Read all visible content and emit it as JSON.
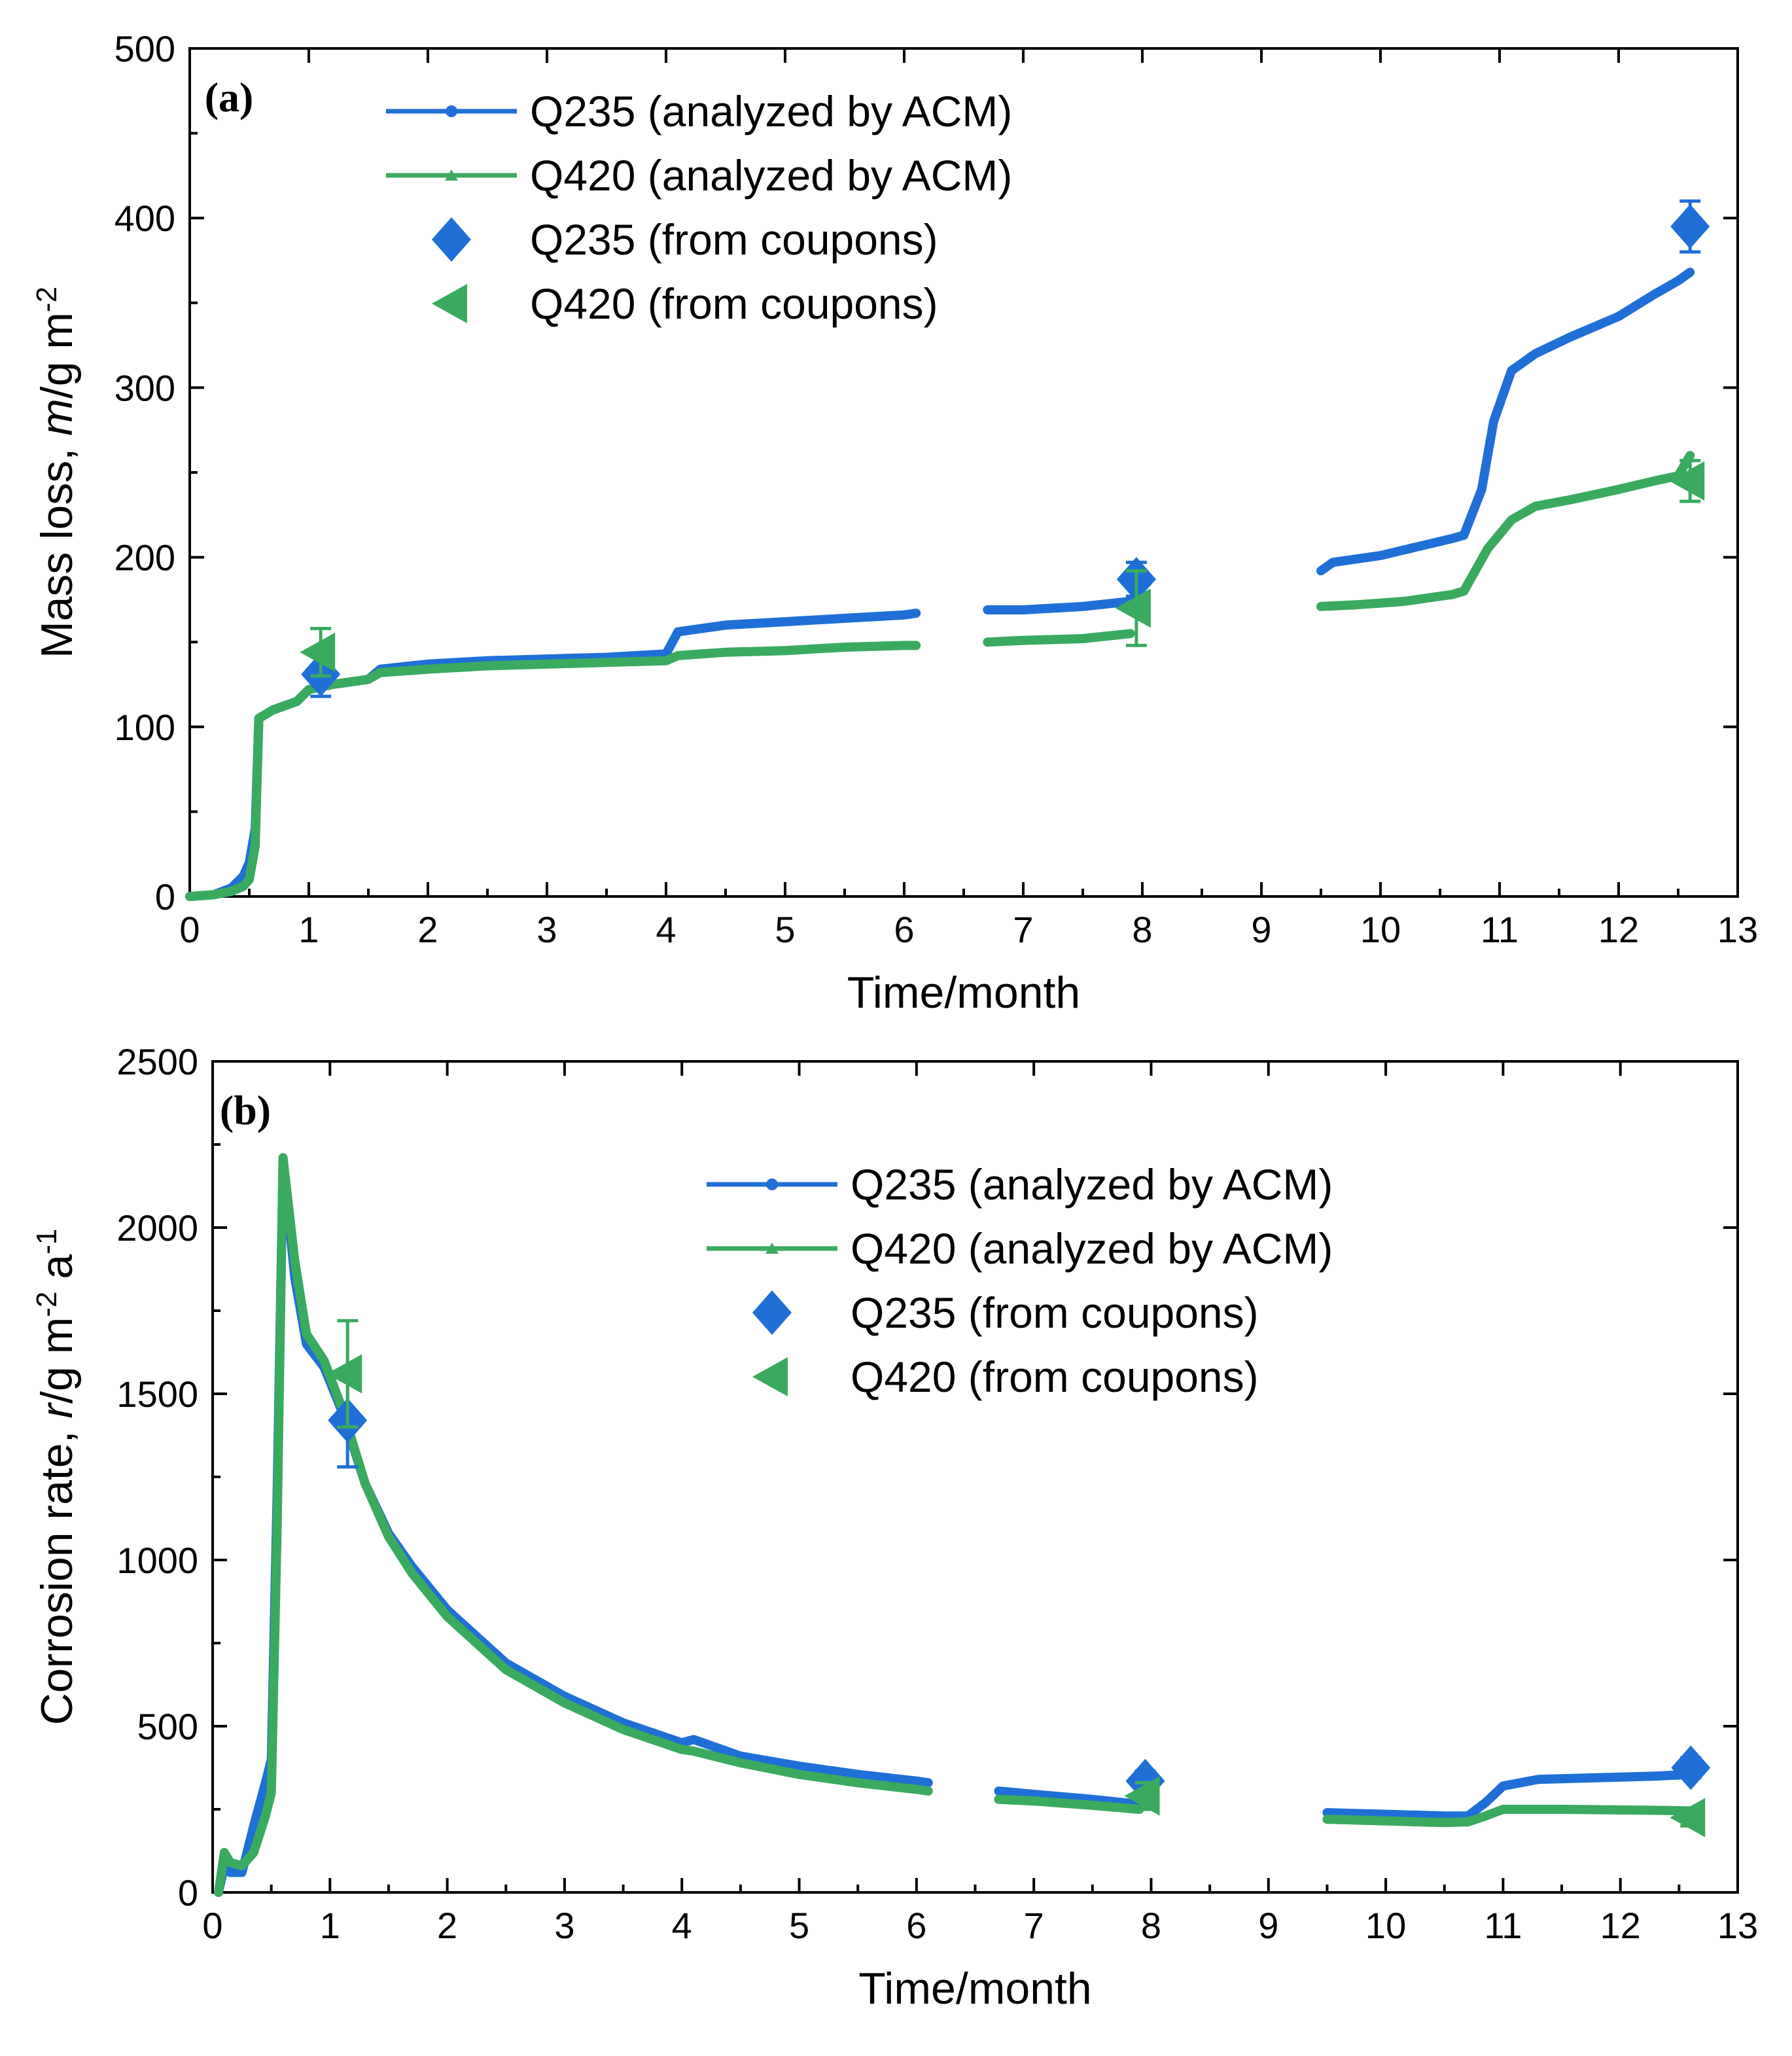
{
  "colors": {
    "q235": "#1f6fd6",
    "q420": "#3aaa5f"
  },
  "legend_labels": [
    "Q235 (analyzed by ACM)",
    "Q420 (analyzed by ACM)",
    "Q235 (from coupons)",
    "Q420 (from coupons)"
  ],
  "chart_data": [
    {
      "type": "line",
      "panel_label": "(a)",
      "xlabel": "Time/month",
      "ylabel": "Mass loss, m/g m-2",
      "ylabel_parts": {
        "prefix": "Mass loss, ",
        "var": "m",
        "unit": "/g m",
        "sup": "-2"
      },
      "xlim": [
        0,
        13
      ],
      "ylim": [
        0,
        500
      ],
      "xticks": [
        "0",
        "1",
        "2",
        "3",
        "4",
        "5",
        "6",
        "7",
        "8",
        "9",
        "10",
        "11",
        "12",
        "13"
      ],
      "yticks": [
        "0",
        "100",
        "200",
        "300",
        "400",
        "500"
      ],
      "legend_position": "top-center",
      "series": [
        {
          "name": "Q235 (analyzed by ACM)",
          "segments": [
            [
              [
                0,
                0
              ],
              [
                0.2,
                1
              ],
              [
                0.35,
                5
              ],
              [
                0.45,
                12
              ],
              [
                0.5,
                20
              ],
              [
                0.55,
                40
              ],
              [
                0.58,
                105
              ],
              [
                0.7,
                110
              ],
              [
                0.9,
                115
              ],
              [
                1.0,
                122
              ],
              [
                1.2,
                125
              ],
              [
                1.5,
                128
              ],
              [
                1.6,
                134
              ],
              [
                2.0,
                137
              ],
              [
                2.5,
                139
              ],
              [
                3.0,
                140
              ],
              [
                3.5,
                141
              ],
              [
                4.0,
                143
              ],
              [
                4.1,
                156
              ],
              [
                4.5,
                160
              ],
              [
                5.0,
                162
              ],
              [
                5.5,
                164
              ],
              [
                6.0,
                166
              ],
              [
                6.1,
                167
              ]
            ],
            [
              [
                6.7,
                169
              ],
              [
                7.0,
                169
              ],
              [
                7.5,
                171
              ],
              [
                7.9,
                174
              ]
            ],
            [
              [
                9.5,
                192
              ],
              [
                9.6,
                197
              ],
              [
                10.0,
                201
              ],
              [
                10.3,
                206
              ],
              [
                10.6,
                211
              ],
              [
                10.7,
                213
              ],
              [
                10.85,
                240
              ],
              [
                10.95,
                280
              ],
              [
                11.1,
                310
              ],
              [
                11.3,
                320
              ],
              [
                11.6,
                330
              ],
              [
                12.0,
                342
              ],
              [
                12.3,
                355
              ],
              [
                12.5,
                363
              ],
              [
                12.6,
                368
              ]
            ]
          ]
        },
        {
          "name": "Q420 (analyzed by ACM)",
          "segments": [
            [
              [
                0,
                0
              ],
              [
                0.2,
                1
              ],
              [
                0.35,
                3
              ],
              [
                0.45,
                6
              ],
              [
                0.5,
                10
              ],
              [
                0.55,
                30
              ],
              [
                0.58,
                105
              ],
              [
                0.7,
                110
              ],
              [
                0.9,
                115
              ],
              [
                1.0,
                122
              ],
              [
                1.2,
                125
              ],
              [
                1.5,
                128
              ],
              [
                1.6,
                132
              ],
              [
                2.0,
                134
              ],
              [
                2.5,
                136
              ],
              [
                3.0,
                137
              ],
              [
                3.5,
                138
              ],
              [
                4.0,
                139
              ],
              [
                4.1,
                142
              ],
              [
                4.5,
                144
              ],
              [
                5.0,
                145
              ],
              [
                5.5,
                147
              ],
              [
                6.0,
                148
              ],
              [
                6.1,
                148
              ]
            ],
            [
              [
                6.7,
                150
              ],
              [
                7.0,
                151
              ],
              [
                7.5,
                152
              ],
              [
                7.9,
                155
              ]
            ],
            [
              [
                9.5,
                171
              ],
              [
                9.8,
                172
              ],
              [
                10.2,
                174
              ],
              [
                10.6,
                178
              ],
              [
                10.7,
                180
              ],
              [
                10.9,
                205
              ],
              [
                11.1,
                222
              ],
              [
                11.3,
                230
              ],
              [
                11.6,
                234
              ],
              [
                12.0,
                240
              ],
              [
                12.3,
                245
              ],
              [
                12.5,
                248
              ],
              [
                12.6,
                260
              ]
            ]
          ]
        }
      ],
      "coupons": [
        {
          "name": "Q235 (from coupons)",
          "marker": "diamond",
          "points": [
            [
              1.1,
              131,
              13
            ],
            [
              7.95,
              187,
              10
            ],
            [
              12.6,
              395,
              15
            ]
          ]
        },
        {
          "name": "Q420 (from coupons)",
          "marker": "triangle-left",
          "points": [
            [
              1.1,
              144,
              14
            ],
            [
              7.95,
              170,
              22
            ],
            [
              12.6,
              245,
              12
            ]
          ]
        }
      ]
    },
    {
      "type": "line",
      "panel_label": "(b)",
      "xlabel": "Time/month",
      "ylabel": "Corrosion rate, r/g m-2 a-1",
      "ylabel_parts": {
        "prefix": "Corrosion rate, ",
        "var": "r",
        "unit": "/g m",
        "sup": "-2",
        "mid": " a",
        "sup2": "-1"
      },
      "xlim": [
        0,
        13
      ],
      "ylim": [
        0,
        2500
      ],
      "xticks": [
        "0",
        "1",
        "2",
        "3",
        "4",
        "5",
        "6",
        "7",
        "8",
        "9",
        "10",
        "11",
        "12",
        "13"
      ],
      "yticks": [
        "0",
        "500",
        "1000",
        "1500",
        "2000",
        "2500"
      ],
      "legend_position": "top-right",
      "series": [
        {
          "name": "Q235 (analyzed by ACM)",
          "segments": [
            [
              [
                0.05,
                0
              ],
              [
                0.1,
                80
              ],
              [
                0.15,
                60
              ],
              [
                0.25,
                60
              ],
              [
                0.35,
                200
              ],
              [
                0.45,
                330
              ],
              [
                0.5,
                400
              ],
              [
                0.55,
                1200
              ],
              [
                0.6,
                2200
              ],
              [
                0.7,
                1850
              ],
              [
                0.8,
                1650
              ],
              [
                0.95,
                1580
              ],
              [
                1.1,
                1450
              ],
              [
                1.3,
                1230
              ],
              [
                1.5,
                1080
              ],
              [
                1.7,
                980
              ],
              [
                2.0,
                850
              ],
              [
                2.5,
                690
              ],
              [
                3.0,
                590
              ],
              [
                3.5,
                510
              ],
              [
                4.0,
                450
              ],
              [
                4.1,
                460
              ],
              [
                4.5,
                410
              ],
              [
                5.0,
                380
              ],
              [
                5.5,
                355
              ],
              [
                6.0,
                335
              ],
              [
                6.1,
                330
              ]
            ],
            [
              [
                6.7,
                305
              ],
              [
                7.0,
                295
              ],
              [
                7.5,
                280
              ],
              [
                7.9,
                265
              ]
            ],
            [
              [
                9.5,
                240
              ],
              [
                10.0,
                235
              ],
              [
                10.5,
                230
              ],
              [
                10.7,
                230
              ],
              [
                10.85,
                270
              ],
              [
                11.0,
                320
              ],
              [
                11.3,
                340
              ],
              [
                11.8,
                345
              ],
              [
                12.3,
                350
              ],
              [
                12.6,
                355
              ]
            ]
          ]
        },
        {
          "name": "Q420 (analyzed by ACM)",
          "segments": [
            [
              [
                0.05,
                0
              ],
              [
                0.1,
                120
              ],
              [
                0.15,
                90
              ],
              [
                0.25,
                80
              ],
              [
                0.35,
                120
              ],
              [
                0.45,
                230
              ],
              [
                0.5,
                300
              ],
              [
                0.55,
                1100
              ],
              [
                0.6,
                2210
              ],
              [
                0.7,
                1900
              ],
              [
                0.8,
                1680
              ],
              [
                0.95,
                1600
              ],
              [
                1.1,
                1460
              ],
              [
                1.3,
                1230
              ],
              [
                1.5,
                1070
              ],
              [
                1.7,
                960
              ],
              [
                2.0,
                830
              ],
              [
                2.5,
                670
              ],
              [
                3.0,
                570
              ],
              [
                3.5,
                490
              ],
              [
                4.0,
                430
              ],
              [
                4.1,
                425
              ],
              [
                4.5,
                390
              ],
              [
                5.0,
                355
              ],
              [
                5.5,
                330
              ],
              [
                6.0,
                310
              ],
              [
                6.1,
                305
              ]
            ],
            [
              [
                6.7,
                280
              ],
              [
                7.0,
                275
              ],
              [
                7.5,
                262
              ],
              [
                7.9,
                250
              ]
            ],
            [
              [
                9.5,
                220
              ],
              [
                10.0,
                215
              ],
              [
                10.5,
                210
              ],
              [
                10.7,
                212
              ],
              [
                10.85,
                230
              ],
              [
                11.0,
                250
              ],
              [
                11.5,
                250
              ],
              [
                12.0,
                248
              ],
              [
                12.3,
                247
              ],
              [
                12.6,
                245
              ]
            ]
          ]
        }
      ],
      "coupons": [
        {
          "name": "Q235 (from coupons)",
          "marker": "diamond",
          "points": [
            [
              1.15,
              1420,
              140
            ],
            [
              7.95,
              335,
              30
            ],
            [
              12.6,
              375,
              30
            ]
          ]
        },
        {
          "name": "Q420 (from coupons)",
          "marker": "triangle-left",
          "points": [
            [
              1.15,
              1560,
              160
            ],
            [
              7.95,
              290,
              40
            ],
            [
              12.6,
              225,
              25
            ]
          ]
        }
      ]
    }
  ]
}
